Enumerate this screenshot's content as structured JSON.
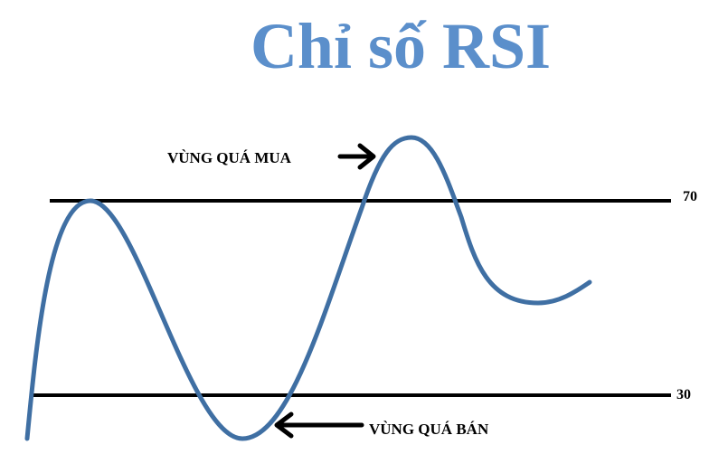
{
  "title": "Chỉ số RSI",
  "levels": [
    {
      "label": "70",
      "value": 70
    },
    {
      "label": "30",
      "value": 30
    }
  ],
  "annotations": {
    "overbought": "VÙNG QUÁ MUA",
    "oversold": "VÙNG QUÁ BÁN"
  },
  "colors": {
    "title": "#5b8fcb",
    "curve": "#3f6fa3",
    "lines": "#000000"
  }
}
